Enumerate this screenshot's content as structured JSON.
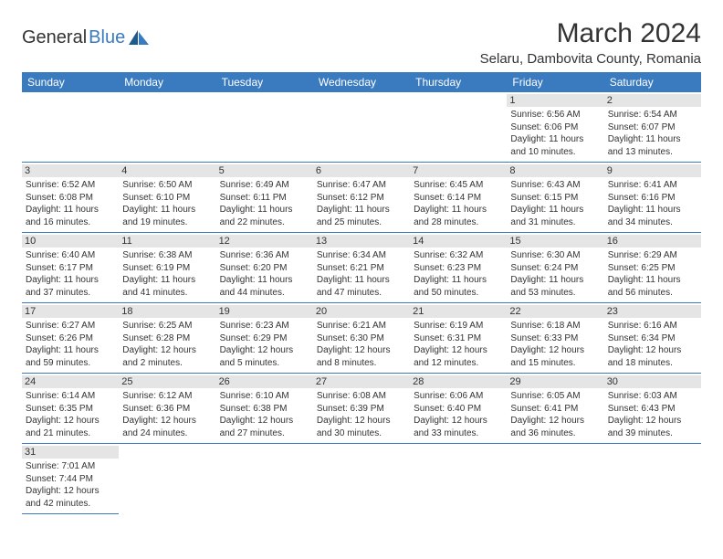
{
  "logo": {
    "general": "General",
    "blue": "Blue"
  },
  "title": "March 2024",
  "location": "Selaru, Dambovita County, Romania",
  "dayNames": [
    "Sunday",
    "Monday",
    "Tuesday",
    "Wednesday",
    "Thursday",
    "Friday",
    "Saturday"
  ],
  "colors": {
    "headerBg": "#3a7bbf",
    "headerText": "#ffffff",
    "dayNumBg": "#e5e5e5",
    "border": "#3a7bbf",
    "text": "#333333"
  },
  "weeks": [
    [
      null,
      null,
      null,
      null,
      null,
      {
        "n": "1",
        "sr": "Sunrise: 6:56 AM",
        "ss": "Sunset: 6:06 PM",
        "d1": "Daylight: 11 hours",
        "d2": "and 10 minutes."
      },
      {
        "n": "2",
        "sr": "Sunrise: 6:54 AM",
        "ss": "Sunset: 6:07 PM",
        "d1": "Daylight: 11 hours",
        "d2": "and 13 minutes."
      }
    ],
    [
      {
        "n": "3",
        "sr": "Sunrise: 6:52 AM",
        "ss": "Sunset: 6:08 PM",
        "d1": "Daylight: 11 hours",
        "d2": "and 16 minutes."
      },
      {
        "n": "4",
        "sr": "Sunrise: 6:50 AM",
        "ss": "Sunset: 6:10 PM",
        "d1": "Daylight: 11 hours",
        "d2": "and 19 minutes."
      },
      {
        "n": "5",
        "sr": "Sunrise: 6:49 AM",
        "ss": "Sunset: 6:11 PM",
        "d1": "Daylight: 11 hours",
        "d2": "and 22 minutes."
      },
      {
        "n": "6",
        "sr": "Sunrise: 6:47 AM",
        "ss": "Sunset: 6:12 PM",
        "d1": "Daylight: 11 hours",
        "d2": "and 25 minutes."
      },
      {
        "n": "7",
        "sr": "Sunrise: 6:45 AM",
        "ss": "Sunset: 6:14 PM",
        "d1": "Daylight: 11 hours",
        "d2": "and 28 minutes."
      },
      {
        "n": "8",
        "sr": "Sunrise: 6:43 AM",
        "ss": "Sunset: 6:15 PM",
        "d1": "Daylight: 11 hours",
        "d2": "and 31 minutes."
      },
      {
        "n": "9",
        "sr": "Sunrise: 6:41 AM",
        "ss": "Sunset: 6:16 PM",
        "d1": "Daylight: 11 hours",
        "d2": "and 34 minutes."
      }
    ],
    [
      {
        "n": "10",
        "sr": "Sunrise: 6:40 AM",
        "ss": "Sunset: 6:17 PM",
        "d1": "Daylight: 11 hours",
        "d2": "and 37 minutes."
      },
      {
        "n": "11",
        "sr": "Sunrise: 6:38 AM",
        "ss": "Sunset: 6:19 PM",
        "d1": "Daylight: 11 hours",
        "d2": "and 41 minutes."
      },
      {
        "n": "12",
        "sr": "Sunrise: 6:36 AM",
        "ss": "Sunset: 6:20 PM",
        "d1": "Daylight: 11 hours",
        "d2": "and 44 minutes."
      },
      {
        "n": "13",
        "sr": "Sunrise: 6:34 AM",
        "ss": "Sunset: 6:21 PM",
        "d1": "Daylight: 11 hours",
        "d2": "and 47 minutes."
      },
      {
        "n": "14",
        "sr": "Sunrise: 6:32 AM",
        "ss": "Sunset: 6:23 PM",
        "d1": "Daylight: 11 hours",
        "d2": "and 50 minutes."
      },
      {
        "n": "15",
        "sr": "Sunrise: 6:30 AM",
        "ss": "Sunset: 6:24 PM",
        "d1": "Daylight: 11 hours",
        "d2": "and 53 minutes."
      },
      {
        "n": "16",
        "sr": "Sunrise: 6:29 AM",
        "ss": "Sunset: 6:25 PM",
        "d1": "Daylight: 11 hours",
        "d2": "and 56 minutes."
      }
    ],
    [
      {
        "n": "17",
        "sr": "Sunrise: 6:27 AM",
        "ss": "Sunset: 6:26 PM",
        "d1": "Daylight: 11 hours",
        "d2": "and 59 minutes."
      },
      {
        "n": "18",
        "sr": "Sunrise: 6:25 AM",
        "ss": "Sunset: 6:28 PM",
        "d1": "Daylight: 12 hours",
        "d2": "and 2 minutes."
      },
      {
        "n": "19",
        "sr": "Sunrise: 6:23 AM",
        "ss": "Sunset: 6:29 PM",
        "d1": "Daylight: 12 hours",
        "d2": "and 5 minutes."
      },
      {
        "n": "20",
        "sr": "Sunrise: 6:21 AM",
        "ss": "Sunset: 6:30 PM",
        "d1": "Daylight: 12 hours",
        "d2": "and 8 minutes."
      },
      {
        "n": "21",
        "sr": "Sunrise: 6:19 AM",
        "ss": "Sunset: 6:31 PM",
        "d1": "Daylight: 12 hours",
        "d2": "and 12 minutes."
      },
      {
        "n": "22",
        "sr": "Sunrise: 6:18 AM",
        "ss": "Sunset: 6:33 PM",
        "d1": "Daylight: 12 hours",
        "d2": "and 15 minutes."
      },
      {
        "n": "23",
        "sr": "Sunrise: 6:16 AM",
        "ss": "Sunset: 6:34 PM",
        "d1": "Daylight: 12 hours",
        "d2": "and 18 minutes."
      }
    ],
    [
      {
        "n": "24",
        "sr": "Sunrise: 6:14 AM",
        "ss": "Sunset: 6:35 PM",
        "d1": "Daylight: 12 hours",
        "d2": "and 21 minutes."
      },
      {
        "n": "25",
        "sr": "Sunrise: 6:12 AM",
        "ss": "Sunset: 6:36 PM",
        "d1": "Daylight: 12 hours",
        "d2": "and 24 minutes."
      },
      {
        "n": "26",
        "sr": "Sunrise: 6:10 AM",
        "ss": "Sunset: 6:38 PM",
        "d1": "Daylight: 12 hours",
        "d2": "and 27 minutes."
      },
      {
        "n": "27",
        "sr": "Sunrise: 6:08 AM",
        "ss": "Sunset: 6:39 PM",
        "d1": "Daylight: 12 hours",
        "d2": "and 30 minutes."
      },
      {
        "n": "28",
        "sr": "Sunrise: 6:06 AM",
        "ss": "Sunset: 6:40 PM",
        "d1": "Daylight: 12 hours",
        "d2": "and 33 minutes."
      },
      {
        "n": "29",
        "sr": "Sunrise: 6:05 AM",
        "ss": "Sunset: 6:41 PM",
        "d1": "Daylight: 12 hours",
        "d2": "and 36 minutes."
      },
      {
        "n": "30",
        "sr": "Sunrise: 6:03 AM",
        "ss": "Sunset: 6:43 PM",
        "d1": "Daylight: 12 hours",
        "d2": "and 39 minutes."
      }
    ],
    [
      {
        "n": "31",
        "sr": "Sunrise: 7:01 AM",
        "ss": "Sunset: 7:44 PM",
        "d1": "Daylight: 12 hours",
        "d2": "and 42 minutes."
      },
      null,
      null,
      null,
      null,
      null,
      null
    ]
  ]
}
